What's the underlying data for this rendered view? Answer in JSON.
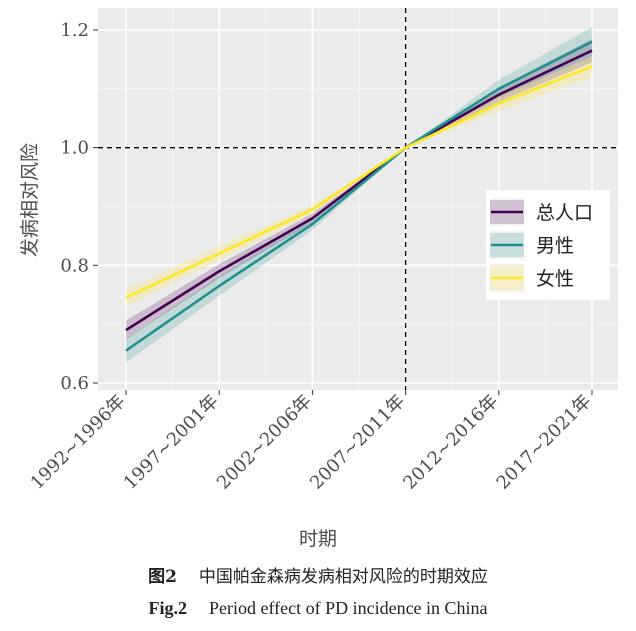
{
  "chart_data": {
    "type": "line",
    "title": "",
    "xlabel": "时期",
    "ylabel": "发病相对风险",
    "categories": [
      "1992~1996年",
      "1997~2001年",
      "2002~2006年",
      "2007~2011年",
      "2012~2016年",
      "2017~2021年"
    ],
    "ylim": [
      0.6,
      1.23
    ],
    "yticks": [
      0.6,
      0.8,
      1.0,
      1.2
    ],
    "ytick_labels": [
      "0.6",
      "0.8",
      "1.0",
      "1.2"
    ],
    "reference_lines": {
      "x_category": "2007~2011年",
      "y_value": 1.0
    },
    "grid": true,
    "legend_position": "right",
    "series": [
      {
        "name": "总人口",
        "color": "#440154",
        "values": [
          0.69,
          0.79,
          0.88,
          1.0,
          1.09,
          1.165
        ],
        "ci_lower": [
          0.674,
          0.778,
          0.872,
          1.0,
          1.078,
          1.145
        ],
        "ci_upper": [
          0.706,
          0.802,
          0.888,
          1.0,
          1.102,
          1.185
        ]
      },
      {
        "name": "男性",
        "color": "#21908C",
        "values": [
          0.655,
          0.765,
          0.87,
          1.0,
          1.1,
          1.18
        ],
        "ci_lower": [
          0.635,
          0.748,
          0.86,
          1.0,
          1.085,
          1.155
        ],
        "ci_upper": [
          0.675,
          0.782,
          0.88,
          1.0,
          1.115,
          1.205
        ]
      },
      {
        "name": "女性",
        "color": "#FDE725",
        "values": [
          0.745,
          0.82,
          0.895,
          1.0,
          1.075,
          1.138
        ],
        "ci_lower": [
          0.73,
          0.808,
          0.888,
          1.0,
          1.062,
          1.12
        ],
        "ci_upper": [
          0.76,
          0.832,
          0.902,
          1.0,
          1.088,
          1.156
        ]
      }
    ]
  },
  "caption": {
    "cn_label": "图2",
    "cn_text": "中国帕金森病发病相对风险的时期效应",
    "en_label": "Fig.2",
    "en_text": "Period effect of PD incidence in China"
  }
}
